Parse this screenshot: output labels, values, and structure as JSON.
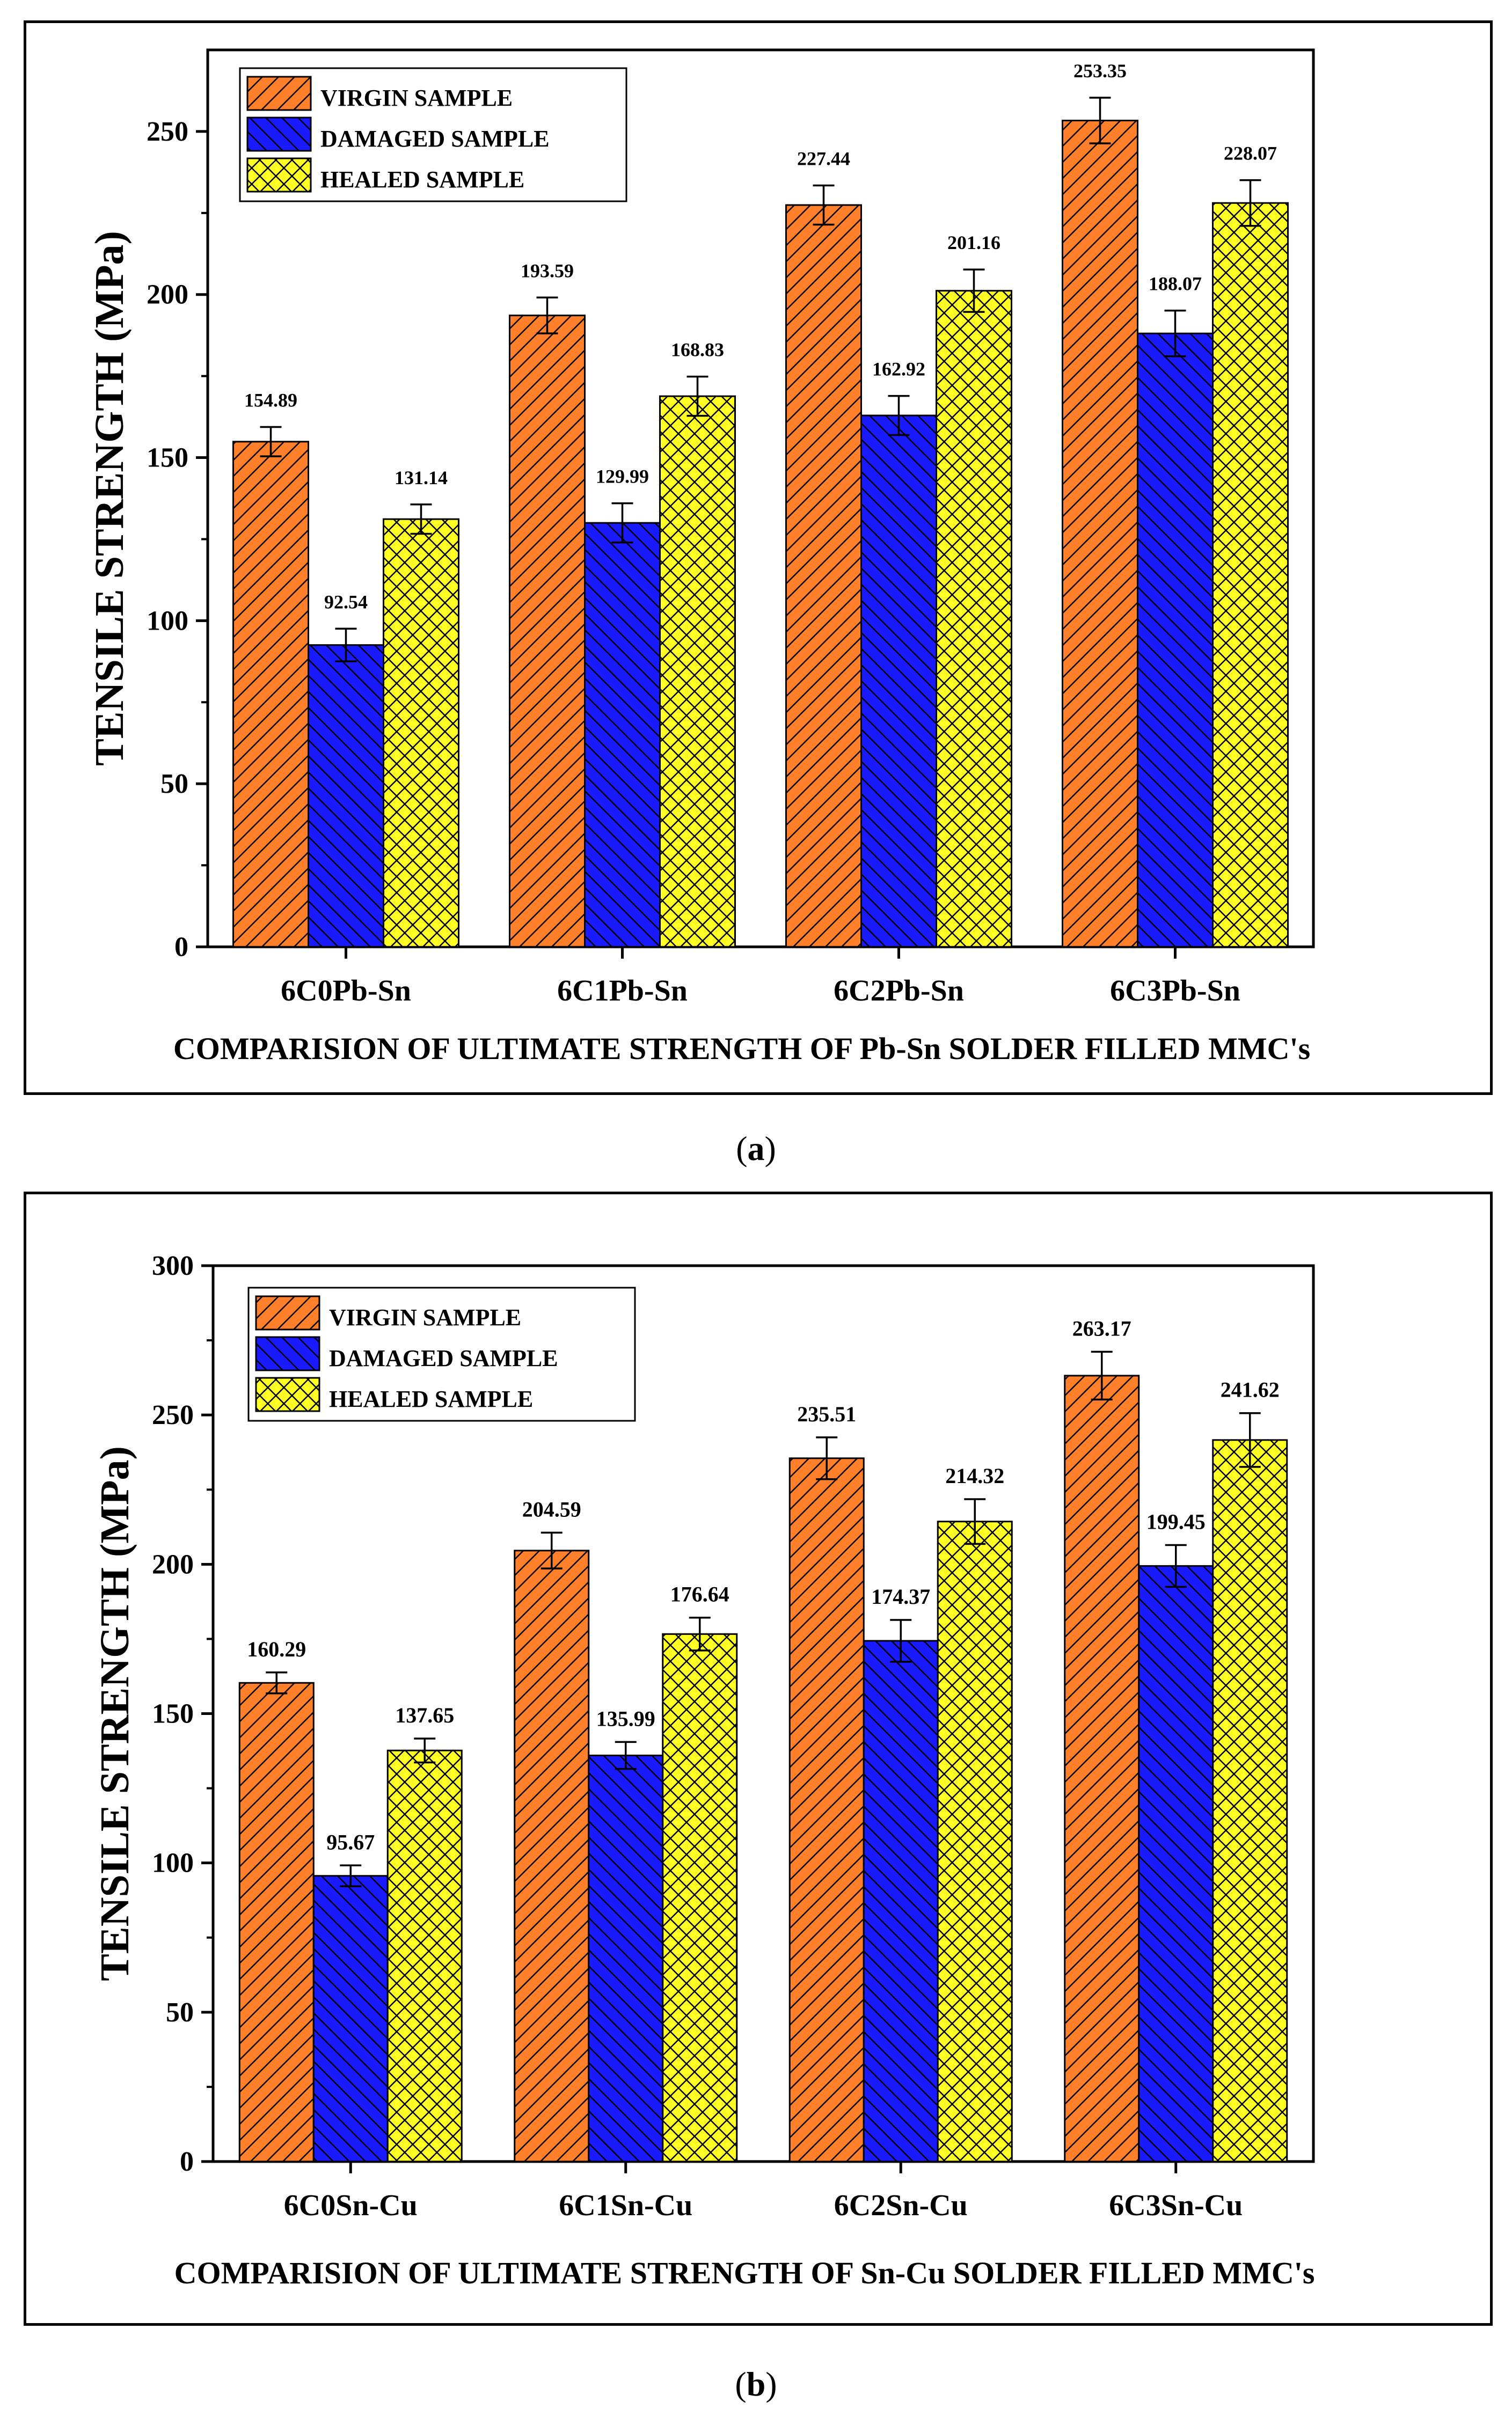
{
  "colors": {
    "virgin": "#ff7f2a",
    "damaged": "#1a1aff",
    "healed": "#ffff26",
    "error_bar": "#000000"
  },
  "patterns": {
    "virgin": "diagonal-hatch",
    "damaged": "back-diagonal-hatch",
    "healed": "cross-hatch"
  },
  "chart_data": [
    {
      "type": "bar",
      "panel_label": "a",
      "xlabel": "COMPARISION OF ULTIMATE STRENGTH OF Pb-Sn SOLDER FILLED MMC's",
      "ylabel": "TENSILE STRENGTH  (MPa)",
      "categories": [
        "6C0Pb-Sn",
        "6C1Pb-Sn",
        "6C2Pb-Sn",
        "6C3Pb-Sn"
      ],
      "ylim": [
        0,
        275
      ],
      "yticks": [
        0,
        50,
        100,
        150,
        200,
        250
      ],
      "legend_position": "top-left",
      "series": [
        {
          "name": "VIRGIN SAMPLE",
          "key": "virgin",
          "values": [
            154.89,
            193.59,
            227.44,
            253.35
          ],
          "labels": [
            "154.89",
            "193.59",
            "227.44",
            "253.35"
          ],
          "errors": [
            4.5,
            5.5,
            6,
            7
          ]
        },
        {
          "name": "DAMAGED SAMPLE",
          "key": "damaged",
          "values": [
            92.54,
            129.99,
            162.92,
            188.07
          ],
          "labels": [
            "92.54",
            "129.99",
            "162.92",
            "188.07"
          ],
          "errors": [
            5,
            6,
            6,
            7
          ]
        },
        {
          "name": "HEALED SAMPLE",
          "key": "healed",
          "values": [
            131.14,
            168.83,
            201.16,
            228.07
          ],
          "labels": [
            "131.14",
            "168.83",
            "201.16",
            "228.07"
          ],
          "errors": [
            4.5,
            6,
            6.5,
            7
          ]
        }
      ]
    },
    {
      "type": "bar",
      "panel_label": "b",
      "xlabel": "COMPARISION OF ULTIMATE STRENGTH OF Sn-Cu SOLDER FILLED MMC's",
      "ylabel": "TENSILE STRENGTH  (MPa)",
      "categories": [
        "6C0Sn-Cu",
        "6C1Sn-Cu",
        "6C2Sn-Cu",
        "6C3Sn-Cu"
      ],
      "ylim": [
        0,
        300
      ],
      "yticks": [
        0,
        50,
        100,
        150,
        200,
        250,
        300
      ],
      "legend_position": "top-left",
      "series": [
        {
          "name": "VIRGIN SAMPLE",
          "key": "virgin",
          "values": [
            160.29,
            204.59,
            235.51,
            263.17
          ],
          "labels": [
            "160.29",
            "204.59",
            "235.51",
            "263.17"
          ],
          "errors": [
            3.5,
            6,
            7,
            8
          ]
        },
        {
          "name": "DAMAGED SAMPLE",
          "key": "damaged",
          "values": [
            95.67,
            135.99,
            174.37,
            199.45
          ],
          "labels": [
            "95.67",
            "135.99",
            "174.37",
            "199.45"
          ],
          "errors": [
            3.5,
            4.5,
            7,
            7
          ]
        },
        {
          "name": "HEALED SAMPLE",
          "key": "healed",
          "values": [
            137.65,
            176.64,
            214.32,
            241.62
          ],
          "labels": [
            "137.65",
            "176.64",
            "214.32",
            "241.62"
          ],
          "errors": [
            4,
            5.5,
            7.5,
            9
          ]
        }
      ]
    }
  ]
}
